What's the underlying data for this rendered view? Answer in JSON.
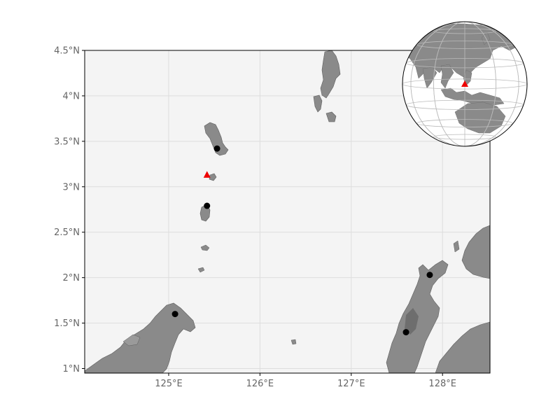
{
  "map": {
    "lon_range": [
      124.08,
      128.52
    ],
    "lat_range": [
      0.95,
      4.5
    ],
    "x_ticks": [
      {
        "value": 125,
        "label": "125°E"
      },
      {
        "value": 126,
        "label": "126°E"
      },
      {
        "value": 127,
        "label": "127°E"
      },
      {
        "value": 128,
        "label": "128°E"
      }
    ],
    "y_ticks": [
      {
        "value": 1.0,
        "label": "1°N"
      },
      {
        "value": 1.5,
        "label": "1.5°N"
      },
      {
        "value": 2.0,
        "label": "2°N"
      },
      {
        "value": 2.5,
        "label": "2.5°N"
      },
      {
        "value": 3.0,
        "label": "3°N"
      },
      {
        "value": 3.5,
        "label": "3.5°N"
      },
      {
        "value": 4.0,
        "label": "4°N"
      },
      {
        "value": 4.5,
        "label": "4.5°N"
      }
    ],
    "grid": true,
    "colors": {
      "ocean": "#f4f4f4",
      "land": "#8a8a8a",
      "land_dark": "#5e5e5e",
      "grid": "#dddddd",
      "volcano": "#ee0000",
      "town": "#000000"
    },
    "volcano": {
      "name": "volcano-marker",
      "lon": 125.42,
      "lat": 3.13
    },
    "towns": [
      {
        "lon": 125.53,
        "lat": 3.42
      },
      {
        "lon": 125.42,
        "lat": 2.79
      },
      {
        "lon": 125.07,
        "lat": 1.6
      },
      {
        "lon": 127.86,
        "lat": 2.03
      },
      {
        "lon": 127.6,
        "lat": 1.4
      }
    ]
  },
  "inset": {
    "type": "orthographic-globe",
    "legend_position": "top-right",
    "marker": "red-triangle"
  }
}
